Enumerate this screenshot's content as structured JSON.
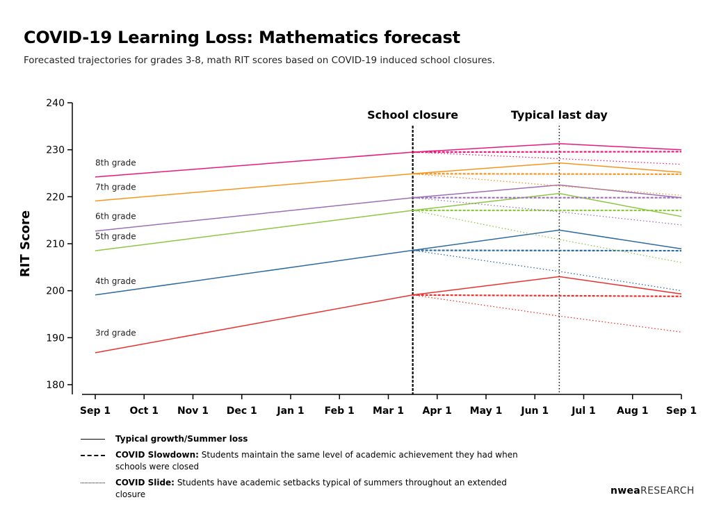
{
  "header": {
    "title": "COVID-19 Learning Loss: Mathematics forecast",
    "subtitle": "Forecasted trajectories for grades 3-8, math RIT scores based on COVID-19 induced school closures."
  },
  "chart_data": {
    "type": "line",
    "ylabel": "RIT Score",
    "ylim": [
      180,
      240
    ],
    "yticks": [
      180,
      190,
      200,
      210,
      220,
      230,
      240
    ],
    "xlim": [
      0,
      12
    ],
    "xticks": [
      {
        "label": "Sep 1",
        "x": 0
      },
      {
        "label": "Oct 1",
        "x": 1
      },
      {
        "label": "Nov 1",
        "x": 2
      },
      {
        "label": "Dec 1",
        "x": 3
      },
      {
        "label": "Jan 1",
        "x": 4
      },
      {
        "label": "Feb 1",
        "x": 5
      },
      {
        "label": "Mar 1",
        "x": 6
      },
      {
        "label": "Apr 1",
        "x": 7
      },
      {
        "label": "May 1",
        "x": 8
      },
      {
        "label": "Jun 1",
        "x": 9
      },
      {
        "label": "Jul 1",
        "x": 10
      },
      {
        "label": "Aug 1",
        "x": 11
      },
      {
        "label": "Sep 1",
        "x": 12
      }
    ],
    "reference_lines": [
      {
        "label": "School closure",
        "x": 6.5,
        "style": "dashed"
      },
      {
        "label": "Typical last day",
        "x": 9.5,
        "style": "dotted"
      }
    ],
    "series": [
      {
        "name": "3rd grade",
        "color": "#e8312f",
        "label_y": 190,
        "typical": [
          [
            0,
            186.8
          ],
          [
            6.5,
            199.1
          ],
          [
            9.5,
            203.0
          ],
          [
            12,
            199.3
          ]
        ],
        "slowdown": [
          [
            6.5,
            199.1
          ],
          [
            12,
            198.8
          ]
        ],
        "slide": [
          [
            6.5,
            199.1
          ],
          [
            9.5,
            194.6
          ],
          [
            12,
            191.2
          ]
        ]
      },
      {
        "name": "4th grade",
        "color": "#2d6a9f",
        "label_y": 201,
        "typical": [
          [
            0,
            199.1
          ],
          [
            6.5,
            208.6
          ],
          [
            9.5,
            212.9
          ],
          [
            12,
            208.9
          ]
        ],
        "slowdown": [
          [
            6.5,
            208.6
          ],
          [
            12,
            208.5
          ]
        ],
        "slide": [
          [
            6.5,
            208.6
          ],
          [
            9.5,
            204.1
          ],
          [
            12,
            200.0
          ]
        ]
      },
      {
        "name": "5th grade",
        "color": "#8dc63f",
        "label_y": 210.5,
        "typical": [
          [
            0,
            208.5
          ],
          [
            6.5,
            217.1
          ],
          [
            9.5,
            220.7
          ],
          [
            12,
            215.8
          ]
        ],
        "slowdown": [
          [
            6.5,
            217.1
          ],
          [
            12,
            217.1
          ]
        ],
        "slide": [
          [
            6.5,
            217.1
          ],
          [
            9.5,
            210.9
          ],
          [
            12,
            206.0
          ]
        ]
      },
      {
        "name": "6th grade",
        "color": "#9b6fb5",
        "label_y": 214.8,
        "typical": [
          [
            0,
            212.7
          ],
          [
            6.5,
            219.8
          ],
          [
            9.5,
            222.5
          ],
          [
            12,
            219.8
          ]
        ],
        "slowdown": [
          [
            6.5,
            219.8
          ],
          [
            12,
            219.8
          ]
        ],
        "slide": [
          [
            6.5,
            219.8
          ],
          [
            9.5,
            216.8
          ],
          [
            12,
            214.0
          ]
        ]
      },
      {
        "name": "7th grade",
        "color": "#f7941d",
        "label_y": 221,
        "typical": [
          [
            0,
            219.1
          ],
          [
            6.5,
            224.9
          ],
          [
            9.5,
            227.2
          ],
          [
            12,
            225.2
          ]
        ],
        "slowdown": [
          [
            6.5,
            224.9
          ],
          [
            12,
            224.8
          ]
        ],
        "slide": [
          [
            6.5,
            224.9
          ],
          [
            9.5,
            222.3
          ],
          [
            12,
            220.3
          ]
        ]
      },
      {
        "name": "8th grade",
        "color": "#e8197a",
        "label_y": 226.2,
        "typical": [
          [
            0,
            224.2
          ],
          [
            6.5,
            229.5
          ],
          [
            9.5,
            231.3
          ],
          [
            12,
            230.0
          ]
        ],
        "slowdown": [
          [
            6.5,
            229.5
          ],
          [
            12,
            229.6
          ]
        ],
        "slide": [
          [
            6.5,
            229.5
          ],
          [
            9.5,
            228.1
          ],
          [
            12,
            226.9
          ]
        ]
      }
    ]
  },
  "legend": {
    "typical": {
      "term": "Typical growth/Summer loss",
      "text": ""
    },
    "slowdown": {
      "term": "COVID Slowdown:",
      "text": "Students maintain the same level of academic achievement they had when schools were closed"
    },
    "slide": {
      "term": "COVID Slide:",
      "text": "Students have academic setbacks typical of summers throughout an extended closure"
    }
  },
  "logo": {
    "brand": "nwea",
    "suffix": "RESEARCH"
  }
}
